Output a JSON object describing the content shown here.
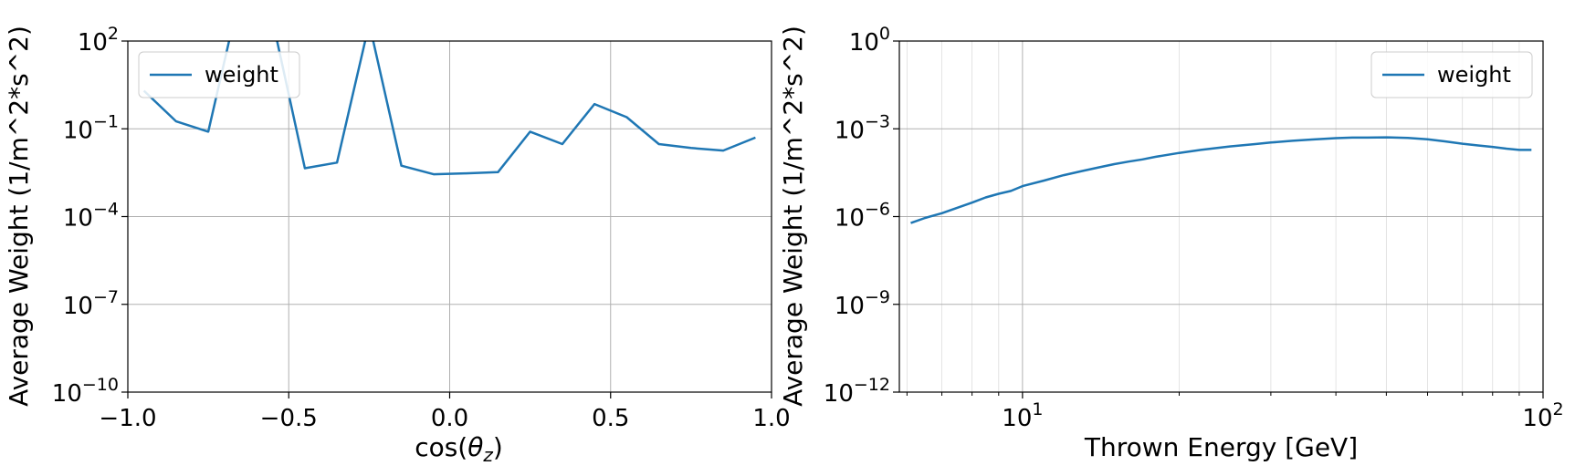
{
  "chart_data": [
    {
      "type": "line",
      "xlabel": "cos(θz)",
      "xlabel_parts": [
        "cos(",
        "θ",
        "z",
        ")"
      ],
      "ylabel": "Average Weight (1/m^2*s^2)",
      "xlim": [
        -1.0,
        1.0
      ],
      "ylim": [
        1e-10,
        100
      ],
      "yscale": "log",
      "xscale": "linear",
      "grid": true,
      "legend": "top-left",
      "x_ticks": [
        {
          "value": -1.0,
          "label": "−1.0"
        },
        {
          "value": -0.5,
          "label": "−0.5"
        },
        {
          "value": 0.0,
          "label": "0.0"
        },
        {
          "value": 0.5,
          "label": "0.5"
        },
        {
          "value": 1.0,
          "label": "1.0"
        }
      ],
      "y_ticks": [
        {
          "value": 100,
          "base": "10",
          "exp": "2"
        },
        {
          "value": 0.1,
          "base": "10",
          "exp": "−1"
        },
        {
          "value": 0.0001,
          "base": "10",
          "exp": "−4"
        },
        {
          "value": 1e-07,
          "base": "10",
          "exp": "−7"
        },
        {
          "value": 1e-10,
          "base": "10",
          "exp": "−10"
        }
      ],
      "series": [
        {
          "name": "weight",
          "color": "#1f77b4",
          "x": [
            -0.95,
            -0.85,
            -0.75,
            -0.65,
            -0.55,
            -0.45,
            -0.35,
            -0.25,
            -0.15,
            -0.05,
            0.05,
            0.15,
            0.25,
            0.35,
            0.45,
            0.55,
            0.65,
            0.75,
            0.85,
            0.95
          ],
          "y": [
            2.0,
            0.18,
            0.08,
            5000,
            500,
            0.0045,
            0.007,
            400,
            0.0055,
            0.0028,
            0.003,
            0.0033,
            0.08,
            0.03,
            0.7,
            0.25,
            0.03,
            0.022,
            0.018,
            0.05
          ]
        }
      ]
    },
    {
      "type": "line",
      "xlabel": "Thrown Energy [GeV]",
      "ylabel": "Average Weight (1/m^2*s^2)",
      "xlim": [
        5.8,
        100
      ],
      "ylim": [
        1e-12,
        1
      ],
      "xscale": "log",
      "yscale": "log",
      "grid": true,
      "legend": "top-right",
      "x_ticks": [
        {
          "value": 10,
          "base": "10",
          "exp": "1"
        },
        {
          "value": 100,
          "base": "10",
          "exp": "2"
        }
      ],
      "y_ticks": [
        {
          "value": 1,
          "base": "10",
          "exp": "0"
        },
        {
          "value": 0.001,
          "base": "10",
          "exp": "−3"
        },
        {
          "value": 1e-06,
          "base": "10",
          "exp": "−6"
        },
        {
          "value": 1e-09,
          "base": "10",
          "exp": "−9"
        },
        {
          "value": 1e-12,
          "base": "10",
          "exp": "−12"
        }
      ],
      "series": [
        {
          "name": "weight",
          "color": "#1f77b4",
          "x": [
            6.1,
            6.5,
            7.0,
            7.5,
            8.0,
            8.5,
            9.0,
            9.5,
            10,
            11,
            12,
            13,
            14,
            15,
            16,
            17,
            18,
            20,
            22,
            25,
            28,
            30,
            33,
            36,
            40,
            43,
            46,
            50,
            55,
            60,
            65,
            70,
            75,
            80,
            85,
            90,
            95
          ],
          "y": [
            6e-07,
            9e-07,
            1.3e-06,
            2e-06,
            3e-06,
            4.5e-06,
            6e-06,
            7.5e-06,
            1.1e-05,
            1.7e-05,
            2.6e-05,
            3.6e-05,
            4.8e-05,
            6.2e-05,
            7.6e-05,
            9e-05,
            0.00011,
            0.00015,
            0.00019,
            0.00025,
            0.0003,
            0.00034,
            0.00039,
            0.00043,
            0.00048,
            0.0005,
            0.0005,
            0.00051,
            0.00049,
            0.00044,
            0.00037,
            0.00031,
            0.00027,
            0.00024,
            0.00021,
            0.00019,
            0.00019
          ]
        }
      ]
    }
  ]
}
